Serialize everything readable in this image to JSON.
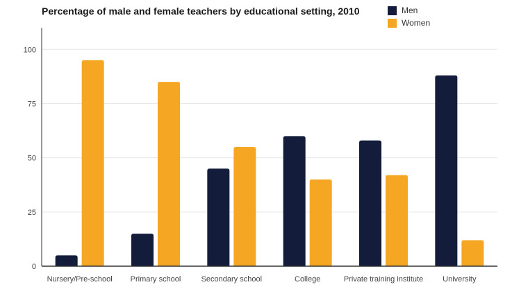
{
  "chart_data": {
    "type": "bar",
    "title": "Percentage of male and female teachers by educational setting, 2010",
    "xlabel": "",
    "ylabel": "",
    "categories": [
      "Nursery/Pre-school",
      "Primary school",
      "Secondary school",
      "College",
      "Private training institute",
      "University"
    ],
    "series": [
      {
        "name": "Men",
        "values": [
          5,
          15,
          45,
          60,
          58,
          88
        ],
        "color": "#131c3a"
      },
      {
        "name": "Women",
        "values": [
          95,
          85,
          55,
          40,
          42,
          12
        ],
        "color": "#f5a623"
      }
    ],
    "ylim": [
      0,
      110
    ],
    "yticks": [
      0,
      25,
      50,
      75,
      100
    ],
    "grid": true,
    "legend_position": "top-right"
  }
}
